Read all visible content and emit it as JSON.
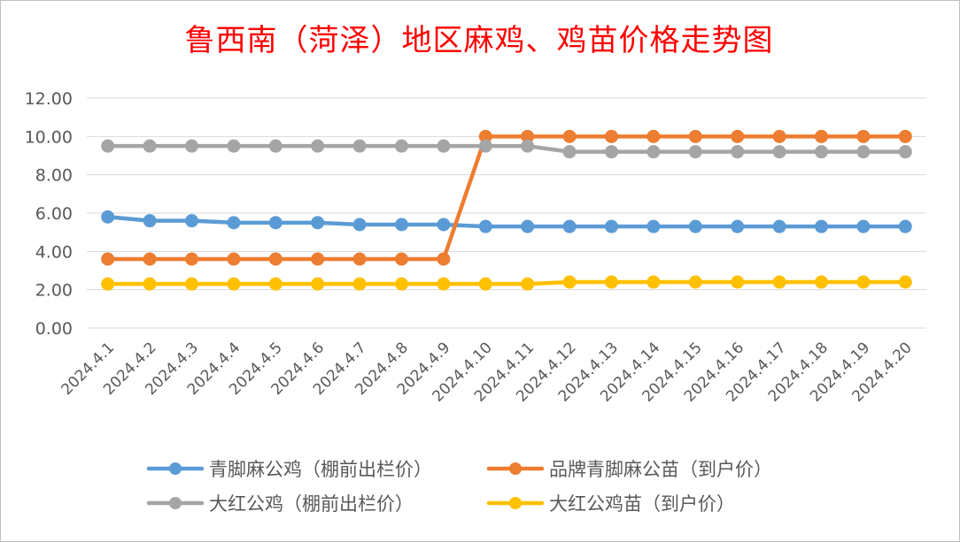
{
  "chart_data": {
    "type": "line",
    "title": "鲁西南（菏泽）地区麻鸡、鸡苗价格走势图",
    "xlabel": "",
    "ylabel": "",
    "ylim": [
      0,
      12
    ],
    "yticks": [
      "0.00",
      "2.00",
      "4.00",
      "6.00",
      "8.00",
      "10.00",
      "12.00"
    ],
    "grid": true,
    "legend_position": "bottom",
    "categories": [
      "2024.4.1",
      "2024.4.2",
      "2024.4.3",
      "2024.4.4",
      "2024.4.5",
      "2024.4.6",
      "2024.4.7",
      "2024.4.8",
      "2024.4.9",
      "2024.4.10",
      "2024.4.11",
      "2024.4.12",
      "2024.4.13",
      "2024.4.14",
      "2024.4.15",
      "2024.4.16",
      "2024.4.17",
      "2024.4.18",
      "2024.4.19",
      "2024.4.20"
    ],
    "series": [
      {
        "name": "青脚麻公鸡（棚前出栏价）",
        "color": "#5b9bd5",
        "values": [
          5.8,
          5.6,
          5.6,
          5.5,
          5.5,
          5.5,
          5.4,
          5.4,
          5.4,
          5.3,
          5.3,
          5.3,
          5.3,
          5.3,
          5.3,
          5.3,
          5.3,
          5.3,
          5.3,
          5.3
        ]
      },
      {
        "name": "品牌青脚麻公苗（到户价）",
        "color": "#ed7d31",
        "values": [
          3.6,
          3.6,
          3.6,
          3.6,
          3.6,
          3.6,
          3.6,
          3.6,
          3.6,
          10.0,
          10.0,
          10.0,
          10.0,
          10.0,
          10.0,
          10.0,
          10.0,
          10.0,
          10.0,
          10.0
        ]
      },
      {
        "name": "大红公鸡（棚前出栏价）",
        "color": "#a5a5a5",
        "values": [
          9.5,
          9.5,
          9.5,
          9.5,
          9.5,
          9.5,
          9.5,
          9.5,
          9.5,
          9.5,
          9.5,
          9.2,
          9.2,
          9.2,
          9.2,
          9.2,
          9.2,
          9.2,
          9.2,
          9.2
        ]
      },
      {
        "name": "大红公鸡苗（到户价）",
        "color": "#ffc000",
        "values": [
          2.3,
          2.3,
          2.3,
          2.3,
          2.3,
          2.3,
          2.3,
          2.3,
          2.3,
          2.3,
          2.3,
          2.4,
          2.4,
          2.4,
          2.4,
          2.4,
          2.4,
          2.4,
          2.4,
          2.4
        ]
      }
    ]
  }
}
